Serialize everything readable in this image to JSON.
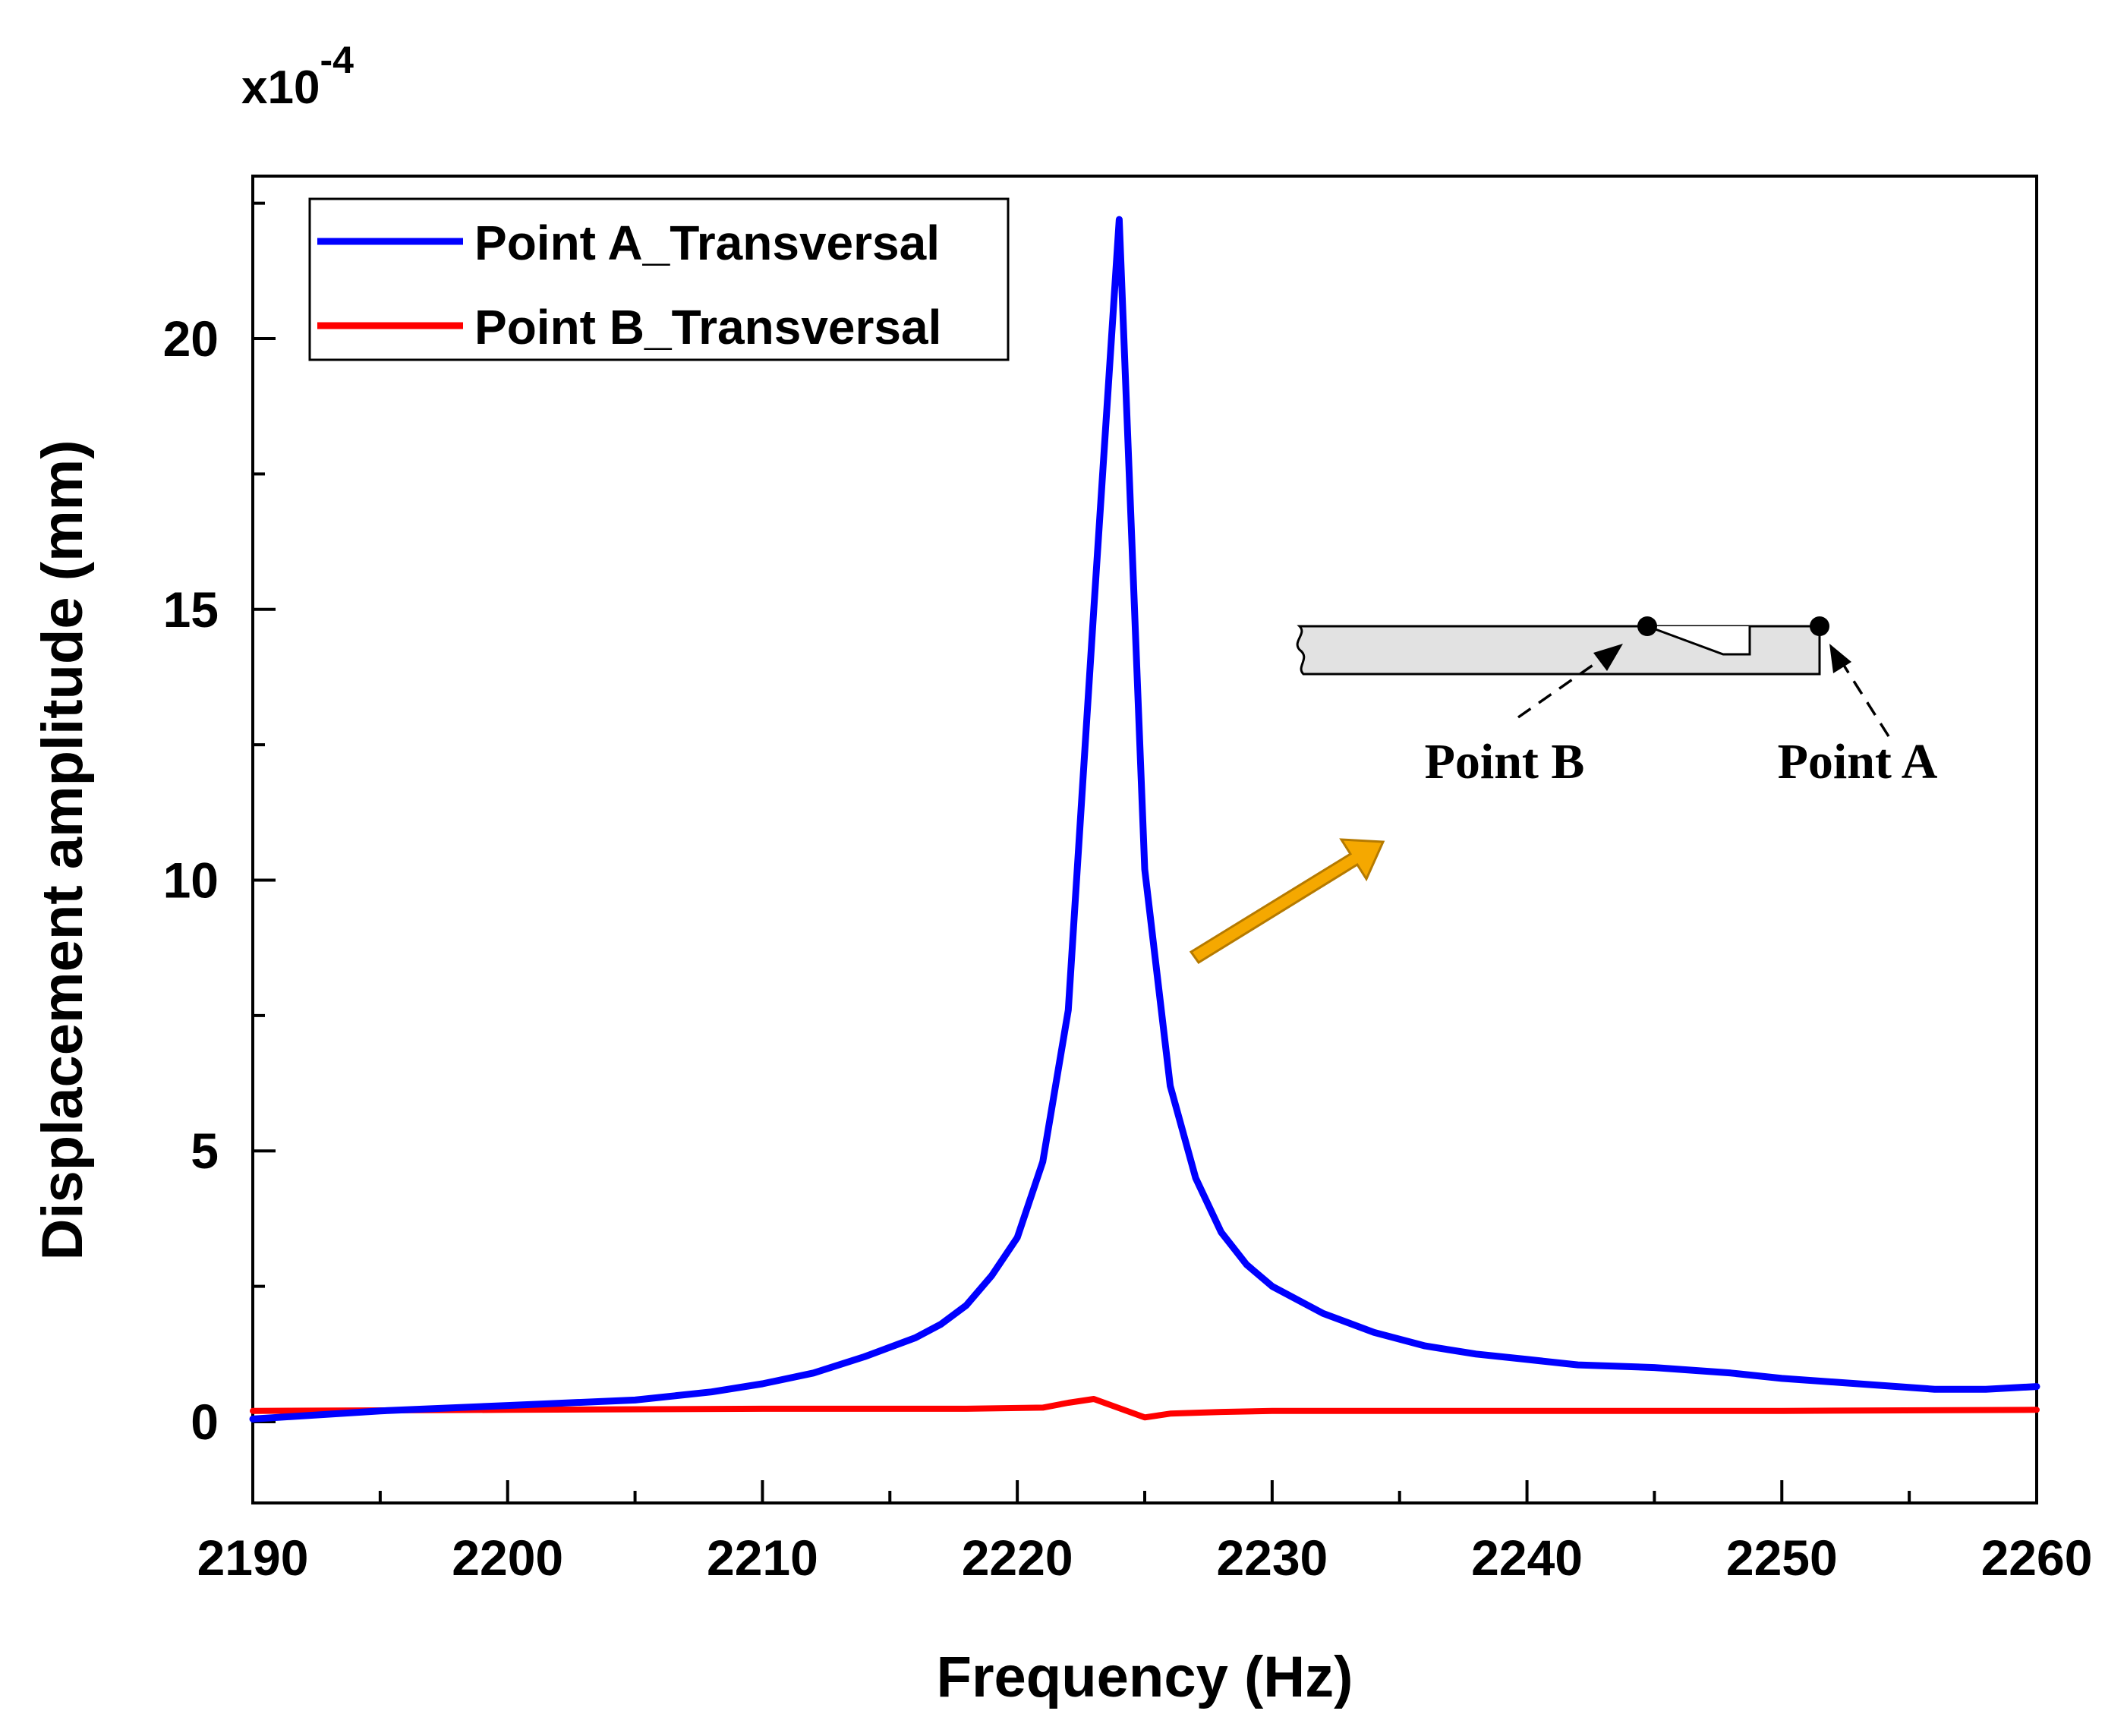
{
  "chart_data": {
    "type": "line",
    "xlabel": "Frequency (Hz)",
    "ylabel": "Displacement amplitude (mm)",
    "y_multiplier": {
      "base": "x10",
      "exponent": "-4"
    },
    "xlim": [
      2190,
      2260
    ],
    "ylim": [
      -1.5,
      23
    ],
    "x_ticks": [
      2190,
      2200,
      2210,
      2220,
      2230,
      2240,
      2250,
      2260
    ],
    "x_tick_labels": [
      "2190",
      "2200",
      "2210",
      "2220",
      "2230",
      "2240",
      "2250",
      "2260"
    ],
    "y_ticks": [
      0,
      5,
      10,
      15,
      20
    ],
    "y_tick_labels": [
      "0",
      "5",
      "10",
      "15",
      "20"
    ],
    "x_minor_ticks": [
      2195,
      2205,
      2215,
      2225,
      2235,
      2245,
      2255
    ],
    "y_minor_ticks": [
      2.5,
      7.5,
      12.5,
      17.5,
      22.5
    ],
    "legend_position": "top-left",
    "series": [
      {
        "name": "Point A_Transversal",
        "color": "#0000ff",
        "x": [
          2190,
          2195,
          2200,
          2205,
          2208,
          2210,
          2212,
          2214,
          2216,
          2217,
          2218,
          2219,
          2220,
          2221,
          2222,
          2223,
          2224,
          2225,
          2226,
          2227,
          2228,
          2229,
          2230,
          2232,
          2234,
          2236,
          2238,
          2240,
          2242,
          2245,
          2248,
          2250,
          2253,
          2256,
          2258,
          2260
        ],
        "y": [
          0.05,
          0.2,
          0.3,
          0.4,
          0.55,
          0.7,
          0.9,
          1.2,
          1.55,
          1.8,
          2.15,
          2.7,
          3.4,
          4.8,
          7.6,
          15.0,
          22.2,
          10.2,
          6.2,
          4.5,
          3.5,
          2.9,
          2.5,
          2.0,
          1.65,
          1.4,
          1.25,
          1.15,
          1.05,
          1.0,
          0.9,
          0.8,
          0.7,
          0.6,
          0.6,
          0.65
        ]
      },
      {
        "name": "Point B_Transversal",
        "color": "#ff0000",
        "x": [
          2190,
          2200,
          2210,
          2218,
          2221,
          2222,
          2223,
          2224,
          2225,
          2226,
          2228,
          2230,
          2240,
          2250,
          2260
        ],
        "y": [
          0.2,
          0.22,
          0.24,
          0.24,
          0.26,
          0.35,
          0.42,
          0.25,
          0.08,
          0.15,
          0.18,
          0.2,
          0.2,
          0.2,
          0.22
        ]
      }
    ],
    "inset": {
      "point_b_label": "Point B",
      "point_a_label": "Point A"
    },
    "arrow_color": "#f5a800"
  }
}
